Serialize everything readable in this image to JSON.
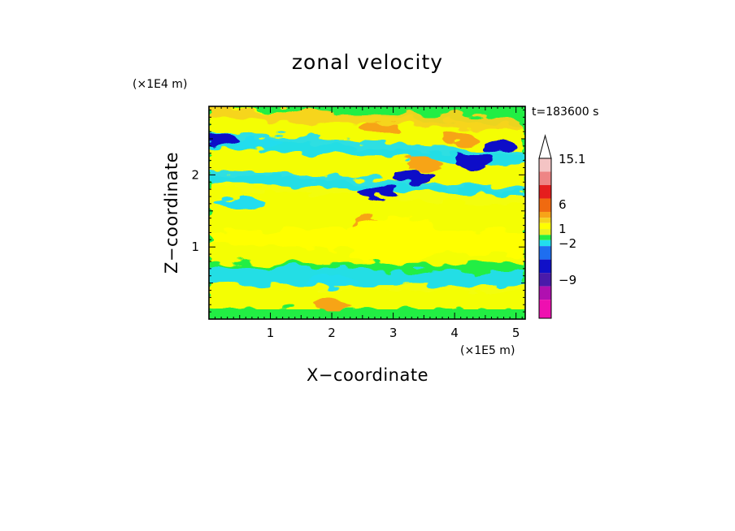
{
  "chart_data": {
    "type": "heatmap",
    "title": "zonal velocity",
    "xlabel": "X−coordinate",
    "ylabel": "Z−coordinate",
    "x_scale_label": "(×1E5 m)",
    "y_scale_label": "(×1E4 m)",
    "time_label": "t=183600 s",
    "xlim": [
      0,
      5.15
    ],
    "ylim": [
      0,
      2.95
    ],
    "x_ticks": [
      "1",
      "2",
      "3",
      "4",
      "5"
    ],
    "y_ticks": [
      "1",
      "2"
    ],
    "colorbar": {
      "labels": [
        "15.1",
        "6",
        "1",
        "−2",
        "−9"
      ],
      "colors_top_to_bottom": [
        "#f4c4c4",
        "#ee8585",
        "#e51e1e",
        "#f06a10",
        "#f7a418",
        "#f5d31e",
        "#ffff00",
        "#e8f21e",
        "#22ee44",
        "#22ddee",
        "#1e6ef0",
        "#1010c8",
        "#4a1aaa",
        "#b010b0",
        "#ee10b0"
      ],
      "extend_max": true
    },
    "field_description_regions": [
      {
        "x": 0.15,
        "z": 2.5,
        "value": -9
      },
      {
        "x": 0.8,
        "z": 2.45,
        "value": -2
      },
      {
        "x": 3.3,
        "z": 1.98,
        "value": -9
      },
      {
        "x": 2.75,
        "z": 1.75,
        "value": -9
      },
      {
        "x": 4.75,
        "z": 2.4,
        "value": -9
      },
      {
        "x": 4.3,
        "z": 2.2,
        "value": -9
      },
      {
        "x": 2.65,
        "z": 1.35,
        "value": 6
      },
      {
        "x": 4.1,
        "z": 2.5,
        "value": 6
      },
      {
        "x": 2.8,
        "z": 2.65,
        "value": 6
      },
      {
        "x": 3.5,
        "z": 2.15,
        "value": 6
      },
      {
        "x": 2.0,
        "z": 0.2,
        "value": 6
      },
      {
        "x": 3.0,
        "z": 1.1,
        "value": 1
      },
      {
        "x": 2.0,
        "z": 0.55,
        "value": -2
      },
      {
        "x": 0.5,
        "z": 1.6,
        "value": -2
      }
    ]
  }
}
